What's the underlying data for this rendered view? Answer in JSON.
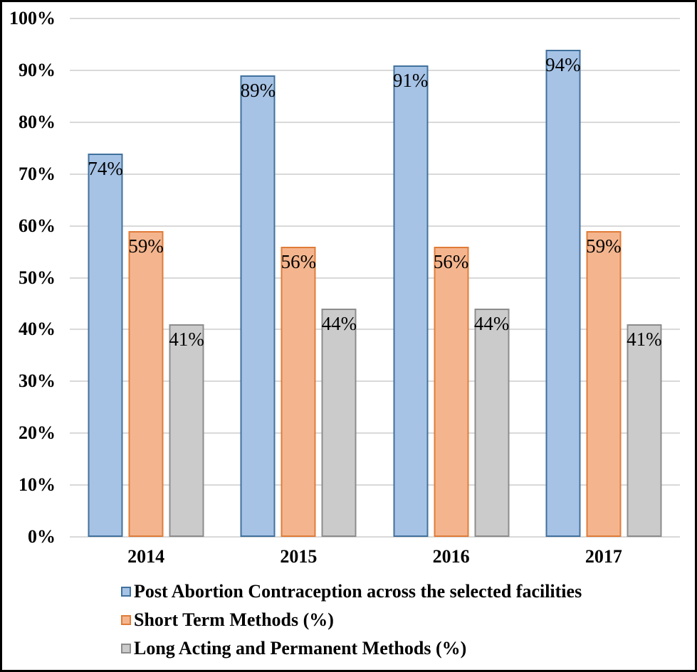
{
  "figure": {
    "background": "#FFFFFF",
    "border_color": "#000000"
  },
  "chart_data": {
    "type": "bar",
    "title": "",
    "xlabel": "",
    "ylabel": "",
    "categories": [
      "2014",
      "2015",
      "2016",
      "2017"
    ],
    "series": [
      {
        "name": "Post Abortion Contraception across the selected facilities",
        "values": [
          74,
          89,
          91,
          94
        ],
        "labels": [
          "74%",
          "89%",
          "91%",
          "94%"
        ],
        "fill": "#A6C3E6",
        "border": "#41719C"
      },
      {
        "name": "Short Term Methods (%)",
        "values": [
          59,
          56,
          56,
          59
        ],
        "labels": [
          "59%",
          "56%",
          "56%",
          "59%"
        ],
        "fill": "#F4B librarian",
        "border": "#E07C39"
      },
      {
        "name": "Long Acting and Permanent Methods (%)",
        "values": [
          41,
          44,
          44,
          41
        ],
        "labels": [
          "41%",
          "44%",
          "44%",
          "41%"
        ],
        "fill": "#CCCBCB",
        "border": "#8C8C8C"
      }
    ],
    "ylim": [
      0,
      100
    ],
    "ytick_step": 10,
    "yticks": [
      "0%",
      "10%",
      "20%",
      "30%",
      "40%",
      "50%",
      "60%",
      "70%",
      "80%",
      "90%",
      "100%"
    ],
    "grid": true,
    "gridline_color": "#D9D9D9",
    "axis_line_color": "#D9D9D9",
    "data_label_position": "inside-end",
    "legend_position": "bottom-left"
  }
}
